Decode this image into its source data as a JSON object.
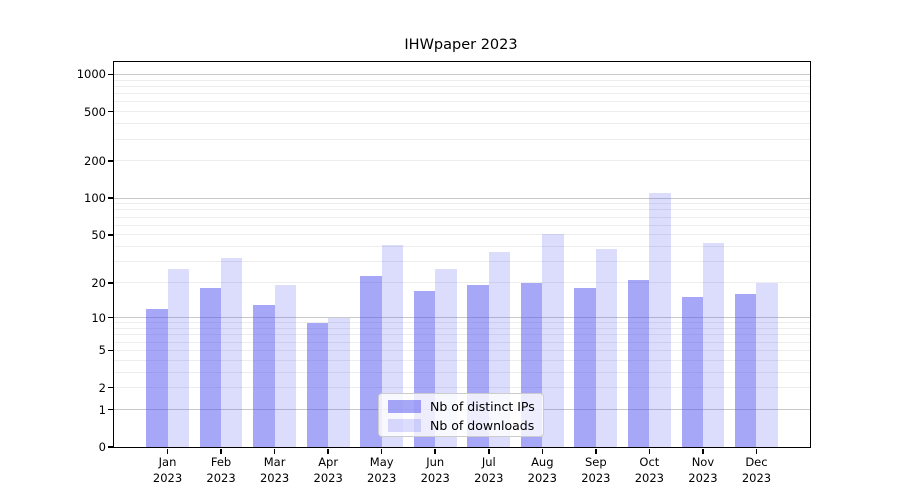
{
  "title": "IHWpaper 2023",
  "chart_data": {
    "type": "bar",
    "title": "IHWpaper 2023",
    "categories": [
      "Jan",
      "Feb",
      "Mar",
      "Apr",
      "May",
      "Jun",
      "Jul",
      "Aug",
      "Sep",
      "Oct",
      "Nov",
      "Dec"
    ],
    "year": "2023",
    "series": [
      {
        "name": "Nb of distinct IPs",
        "color": "rgba(80,80,240,0.5)",
        "values": [
          12,
          18,
          13,
          9,
          23,
          17,
          19,
          20,
          18,
          21,
          15,
          16
        ]
      },
      {
        "name": "Nb of downloads",
        "color": "rgba(80,80,240,0.2)",
        "values": [
          26,
          32,
          19,
          10,
          41,
          26,
          36,
          51,
          38,
          109,
          43,
          20
        ]
      }
    ],
    "xlabel": "",
    "ylabel": "",
    "yscale": "log1p",
    "ylim": [
      0,
      1300
    ],
    "yticks": [
      0,
      1,
      2,
      5,
      10,
      20,
      50,
      100,
      200,
      500,
      1000
    ],
    "minor_gridlines": [
      2,
      3,
      4,
      5,
      6,
      7,
      8,
      9,
      20,
      30,
      40,
      50,
      60,
      70,
      80,
      90,
      200,
      300,
      400,
      500,
      600,
      700,
      800,
      900
    ],
    "major_gridlines": [
      1,
      10,
      100,
      1000
    ],
    "grid": true,
    "legend_position": "lower center",
    "colors": {
      "bar_ips": "rgba(80,80,240,0.5)",
      "bar_downloads": "rgba(80,80,240,0.2)",
      "grid_minor": "#ededed",
      "grid_major": "#c8c8c8",
      "axis": "#000000",
      "legend_border": "#cccccc"
    }
  }
}
